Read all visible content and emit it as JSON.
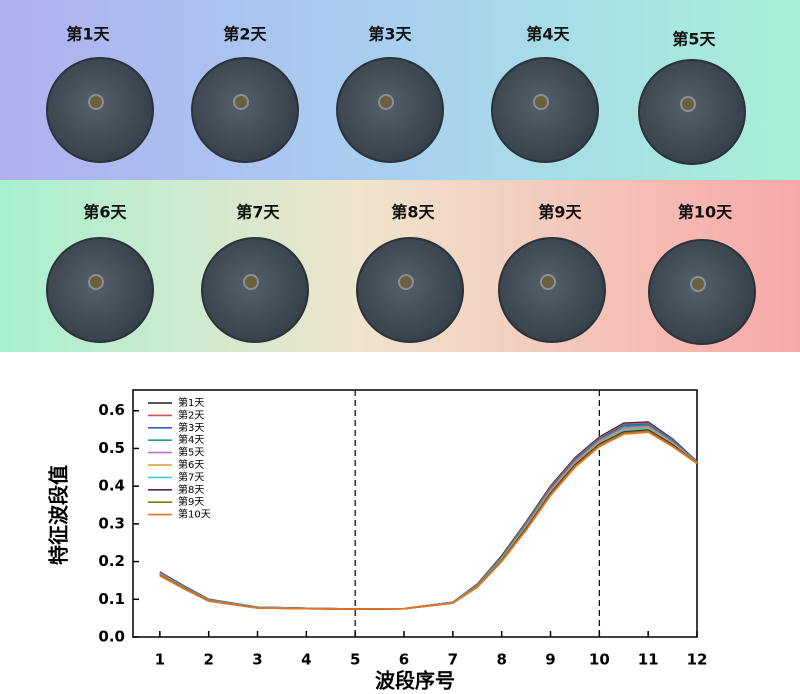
{
  "image_panel": {
    "labels": [
      "第1天",
      "第2天",
      "第3天",
      "第4天",
      "第5天",
      "第6天",
      "第7天",
      "第8天",
      "第9天",
      "第10天"
    ]
  },
  "chart_data": {
    "type": "line",
    "xlabel": "波段序号",
    "ylabel": "特征波段值",
    "x": [
      1,
      1.5,
      2,
      3,
      4,
      5,
      6,
      7,
      7.5,
      8,
      8.5,
      9,
      9.5,
      10,
      10.5,
      11,
      11.5,
      12
    ],
    "series": [
      {
        "name": "第1天",
        "color": "#222222",
        "values": [
          0.172,
          0.135,
          0.1,
          0.079,
          0.076,
          0.074,
          0.075,
          0.092,
          0.14,
          0.215,
          0.305,
          0.4,
          0.475,
          0.53,
          0.567,
          0.57,
          0.525,
          0.465
        ]
      },
      {
        "name": "第2天",
        "color": "#d9505a",
        "values": [
          0.171,
          0.134,
          0.099,
          0.079,
          0.076,
          0.074,
          0.075,
          0.092,
          0.139,
          0.213,
          0.303,
          0.397,
          0.472,
          0.527,
          0.564,
          0.567,
          0.523,
          0.464
        ]
      },
      {
        "name": "第3天",
        "color": "#3060c0",
        "values": [
          0.17,
          0.133,
          0.099,
          0.079,
          0.076,
          0.074,
          0.075,
          0.092,
          0.138,
          0.212,
          0.3,
          0.394,
          0.469,
          0.524,
          0.561,
          0.564,
          0.521,
          0.464
        ]
      },
      {
        "name": "第4天",
        "color": "#20a080",
        "values": [
          0.169,
          0.132,
          0.098,
          0.078,
          0.076,
          0.074,
          0.075,
          0.091,
          0.137,
          0.21,
          0.298,
          0.392,
          0.467,
          0.522,
          0.557,
          0.561,
          0.518,
          0.463
        ]
      },
      {
        "name": "第5天",
        "color": "#c070d0",
        "values": [
          0.168,
          0.131,
          0.098,
          0.078,
          0.076,
          0.074,
          0.075,
          0.091,
          0.136,
          0.208,
          0.295,
          0.389,
          0.464,
          0.519,
          0.554,
          0.558,
          0.516,
          0.463
        ]
      },
      {
        "name": "第6天",
        "color": "#d0a020",
        "values": [
          0.166,
          0.131,
          0.097,
          0.078,
          0.075,
          0.074,
          0.075,
          0.091,
          0.136,
          0.207,
          0.293,
          0.386,
          0.461,
          0.516,
          0.551,
          0.555,
          0.514,
          0.462
        ]
      },
      {
        "name": "第7天",
        "color": "#40c8d8",
        "values": [
          0.165,
          0.13,
          0.097,
          0.078,
          0.075,
          0.074,
          0.075,
          0.091,
          0.135,
          0.205,
          0.29,
          0.383,
          0.458,
          0.513,
          0.548,
          0.552,
          0.512,
          0.462
        ]
      },
      {
        "name": "第8天",
        "color": "#6a2040",
        "values": [
          0.164,
          0.129,
          0.096,
          0.077,
          0.075,
          0.074,
          0.075,
          0.09,
          0.134,
          0.203,
          0.288,
          0.381,
          0.456,
          0.511,
          0.544,
          0.549,
          0.51,
          0.461
        ]
      },
      {
        "name": "第9天",
        "color": "#808000",
        "values": [
          0.163,
          0.128,
          0.096,
          0.077,
          0.075,
          0.074,
          0.075,
          0.09,
          0.133,
          0.202,
          0.285,
          0.378,
          0.453,
          0.508,
          0.541,
          0.546,
          0.507,
          0.461
        ]
      },
      {
        "name": "第10天",
        "color": "#f07020",
        "values": [
          0.162,
          0.127,
          0.095,
          0.077,
          0.075,
          0.074,
          0.075,
          0.09,
          0.132,
          0.2,
          0.283,
          0.375,
          0.45,
          0.505,
          0.538,
          0.543,
          0.505,
          0.46
        ]
      }
    ],
    "xlim": [
      0.45,
      12
    ],
    "ylim": [
      0,
      0.655
    ],
    "xticks": [
      1,
      2,
      3,
      4,
      5,
      6,
      7,
      8,
      9,
      10,
      11,
      12
    ],
    "yticks": [
      {
        "value": 0,
        "label": "0.0"
      },
      0.1,
      0.2,
      0.3,
      0.4,
      0.5,
      0.6
    ],
    "vlines": [
      5,
      10
    ],
    "legend": "upper-left",
    "grid": false
  }
}
